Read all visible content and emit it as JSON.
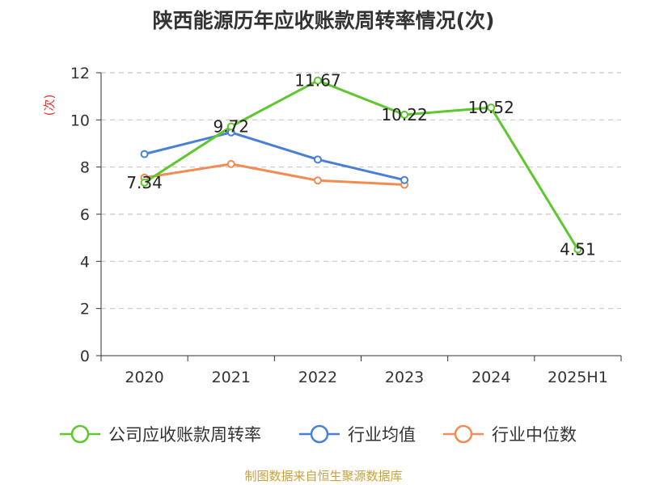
{
  "chart_data": {
    "type": "line",
    "title": "陕西能源历年应收账款周转率情况(次)",
    "ylabel": "(次)",
    "xlabel": "",
    "categories": [
      "2020",
      "2021",
      "2022",
      "2023",
      "2024",
      "2025H1"
    ],
    "ylim": [
      0,
      12
    ],
    "yticks": [
      0,
      2,
      4,
      6,
      8,
      10,
      12
    ],
    "grid": "horizontal-dashed",
    "legend_position": "bottom",
    "series": [
      {
        "name": "公司应收账款周转率",
        "color": "#5ec72e",
        "values": [
          7.34,
          9.72,
          11.67,
          10.22,
          10.52,
          4.51
        ],
        "labels": [
          "7.34",
          "9.72",
          "11.67",
          "10.22",
          "10.52",
          "4.51"
        ]
      },
      {
        "name": "行业均值",
        "color": "#4a7fd8",
        "values": [
          8.55,
          9.47,
          8.32,
          7.45,
          null,
          null
        ]
      },
      {
        "name": "行业中位数",
        "color": "#f28c55",
        "values": [
          7.55,
          8.13,
          7.43,
          7.25,
          null,
          null
        ]
      }
    ]
  },
  "source": "制图数据来自恒生聚源数据库"
}
